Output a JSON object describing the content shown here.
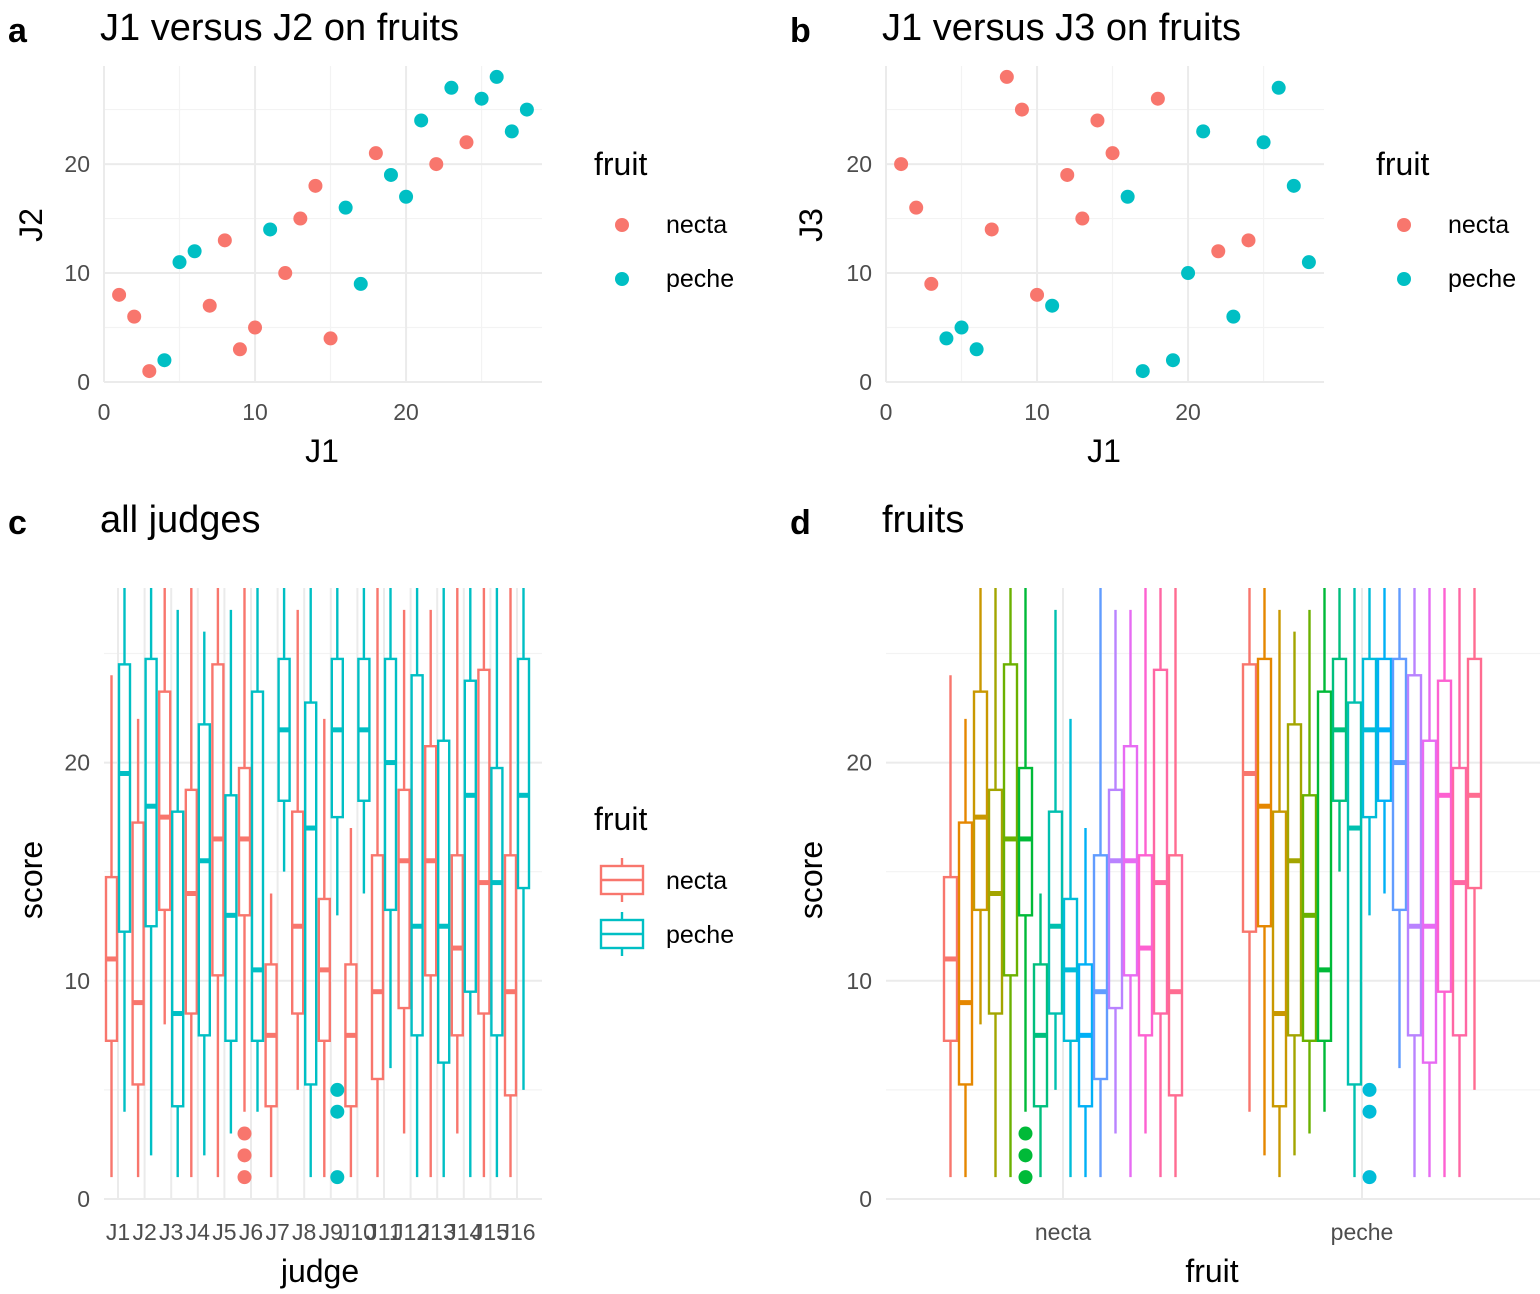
{
  "colors": {
    "necta": "#F8766D",
    "peche": "#00BFC4",
    "judges": [
      "#F8766D",
      "#E58700",
      "#C99800",
      "#A3A500",
      "#6BB100",
      "#00BA38",
      "#00BF7D",
      "#00C0AF",
      "#00BCD8",
      "#00B0F6",
      "#619CFF",
      "#B983FF",
      "#E76BF3",
      "#FD61D1",
      "#FF67A4",
      "#FF6C91"
    ]
  },
  "chart_data": [
    {
      "panel": "a",
      "type": "scatter",
      "title": "J1 versus J2 on fruits",
      "xlabel": "J1",
      "ylabel": "J2",
      "xlim": [
        0,
        29
      ],
      "ylim": [
        0,
        29
      ],
      "xticks": [
        0,
        10,
        20
      ],
      "yticks": [
        0,
        10,
        20
      ],
      "legend": {
        "title": "fruit",
        "entries": [
          "necta",
          "peche"
        ],
        "position": "right"
      },
      "series": [
        {
          "name": "necta",
          "points": [
            [
              1,
              8
            ],
            [
              2,
              6
            ],
            [
              3,
              1
            ],
            [
              7,
              7
            ],
            [
              8,
              13
            ],
            [
              9,
              3
            ],
            [
              10,
              5
            ],
            [
              12,
              10
            ],
            [
              13,
              15
            ],
            [
              14,
              18
            ],
            [
              15,
              4
            ],
            [
              18,
              21
            ],
            [
              22,
              20
            ],
            [
              24,
              22
            ]
          ]
        },
        {
          "name": "peche",
          "points": [
            [
              4,
              2
            ],
            [
              5,
              11
            ],
            [
              6,
              12
            ],
            [
              11,
              14
            ],
            [
              16,
              16
            ],
            [
              17,
              9
            ],
            [
              19,
              19
            ],
            [
              20,
              17
            ],
            [
              21,
              24
            ],
            [
              23,
              27
            ],
            [
              25,
              26
            ],
            [
              26,
              28
            ],
            [
              27,
              23
            ],
            [
              28,
              25
            ]
          ]
        }
      ]
    },
    {
      "panel": "b",
      "type": "scatter",
      "title": "J1 versus J3 on fruits",
      "xlabel": "J1",
      "ylabel": "J3",
      "xlim": [
        0,
        29
      ],
      "ylim": [
        0,
        29
      ],
      "xticks": [
        0,
        10,
        20
      ],
      "yticks": [
        0,
        10,
        20
      ],
      "legend": {
        "title": "fruit",
        "entries": [
          "necta",
          "peche"
        ],
        "position": "right"
      },
      "series": [
        {
          "name": "necta",
          "points": [
            [
              1,
              20
            ],
            [
              2,
              16
            ],
            [
              3,
              9
            ],
            [
              7,
              14
            ],
            [
              8,
              28
            ],
            [
              9,
              25
            ],
            [
              10,
              8
            ],
            [
              12,
              19
            ],
            [
              13,
              15
            ],
            [
              14,
              24
            ],
            [
              15,
              21
            ],
            [
              18,
              26
            ],
            [
              22,
              12
            ],
            [
              24,
              13
            ]
          ]
        },
        {
          "name": "peche",
          "points": [
            [
              4,
              4
            ],
            [
              5,
              5
            ],
            [
              6,
              3
            ],
            [
              11,
              7
            ],
            [
              16,
              17
            ],
            [
              17,
              1
            ],
            [
              19,
              2
            ],
            [
              20,
              10
            ],
            [
              21,
              23
            ],
            [
              23,
              6
            ],
            [
              25,
              22
            ],
            [
              26,
              27
            ],
            [
              27,
              18
            ],
            [
              28,
              11
            ]
          ]
        }
      ]
    },
    {
      "panel": "c",
      "type": "box",
      "title": "all judges",
      "xlabel": "judge",
      "ylabel": "score",
      "ylim": [
        0,
        28
      ],
      "yticks": [
        0,
        10,
        20
      ],
      "categories": [
        "J1",
        "J2",
        "J3",
        "J4",
        "J5",
        "J6",
        "J7",
        "J8",
        "J9",
        "J10",
        "J11",
        "J12",
        "J13",
        "J14",
        "J15",
        "J16"
      ],
      "legend": {
        "title": "fruit",
        "entries": [
          "necta",
          "peche"
        ],
        "position": "right"
      },
      "series": [
        {
          "name": "necta",
          "boxes": [
            [
              1,
              7.25,
              11,
              14.75,
              24
            ],
            [
              1,
              5.25,
              9,
              17.25,
              22
            ],
            [
              8,
              13.25,
              17.5,
              23.25,
              28
            ],
            [
              1,
              8.5,
              14,
              18.75,
              28
            ],
            [
              1,
              10.25,
              16.5,
              24.5,
              28
            ],
            [
              4,
              13,
              16.5,
              19.75,
              28
            ],
            [
              1,
              4.25,
              7.5,
              10.75,
              14
            ],
            [
              5,
              8.5,
              12.5,
              17.75,
              27
            ],
            [
              1,
              7.25,
              10.5,
              13.75,
              22
            ],
            [
              1,
              4.25,
              7.5,
              10.75,
              17
            ],
            [
              1,
              5.5,
              9.5,
              15.75,
              28
            ],
            [
              3,
              8.75,
              15.5,
              18.75,
              27
            ],
            [
              1,
              10.25,
              15.5,
              20.75,
              27
            ],
            [
              3,
              7.5,
              11.5,
              15.75,
              28
            ],
            [
              1,
              8.5,
              14.5,
              24.25,
              28
            ],
            [
              1,
              4.75,
              9.5,
              15.75,
              28
            ]
          ],
          "outliers": [
            [],
            [],
            [],
            [],
            [],
            [
              1,
              2,
              3
            ],
            [],
            [],
            [],
            [],
            [],
            [],
            [],
            [],
            [],
            []
          ]
        },
        {
          "name": "peche",
          "boxes": [
            [
              4,
              12.25,
              19.5,
              24.5,
              28
            ],
            [
              2,
              12.5,
              18,
              24.75,
              28
            ],
            [
              1,
              4.25,
              8.5,
              17.75,
              27
            ],
            [
              2,
              7.5,
              15.5,
              21.75,
              26
            ],
            [
              3,
              7.25,
              13,
              18.5,
              27
            ],
            [
              4,
              7.25,
              10.5,
              23.25,
              28
            ],
            [
              15,
              18.25,
              21.5,
              24.75,
              28
            ],
            [
              1,
              5.25,
              17,
              22.75,
              28
            ],
            [
              13,
              17.5,
              21.5,
              24.75,
              28
            ],
            [
              14,
              18.25,
              21.5,
              24.75,
              28
            ],
            [
              6,
              13.25,
              20,
              24.75,
              28
            ],
            [
              1,
              7.5,
              12.5,
              24,
              28
            ],
            [
              1,
              6.25,
              12.5,
              21,
              28
            ],
            [
              1,
              9.5,
              18.5,
              23.75,
              28
            ],
            [
              1,
              7.5,
              14.5,
              19.75,
              28
            ],
            [
              5,
              14.25,
              18.5,
              24.75,
              28
            ]
          ],
          "outliers": [
            [],
            [],
            [],
            [],
            [],
            [],
            [],
            [],
            [
              1,
              4,
              5
            ],
            [],
            [],
            [],
            [],
            [],
            [],
            []
          ]
        }
      ]
    },
    {
      "panel": "d",
      "type": "box",
      "title": "fruits",
      "xlabel": "fruit",
      "ylabel": "score",
      "ylim": [
        0,
        28
      ],
      "yticks": [
        0,
        10,
        20
      ],
      "categories": [
        "necta",
        "peche"
      ],
      "group_by": "judge",
      "legend": null
    }
  ]
}
